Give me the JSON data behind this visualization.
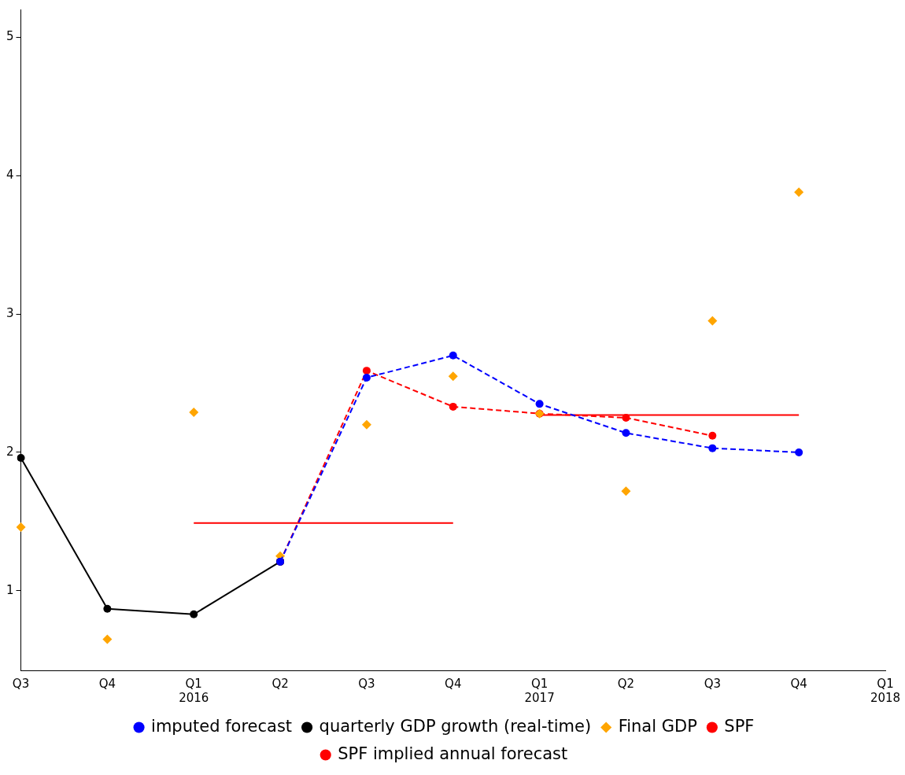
{
  "chart_data": {
    "type": "line",
    "categories": [
      "Q3",
      "Q4",
      "Q1\n2016",
      "Q2",
      "Q3",
      "Q4",
      "Q1\n2017",
      "Q2",
      "Q3",
      "Q4",
      "Q1\n2018"
    ],
    "ylim": [
      0.425,
      5.2
    ],
    "yticks": [
      1,
      2,
      3,
      4,
      5
    ],
    "grid": false,
    "legend": "bottom",
    "series": [
      {
        "name": "imputed forecast",
        "color": "#0000ff",
        "marker": "circle",
        "line_style": "dashed",
        "values": [
          null,
          null,
          null,
          1.21,
          2.54,
          2.7,
          2.35,
          2.14,
          2.03,
          2.0,
          null
        ]
      },
      {
        "name": "quarterly GDP growth (real-time)",
        "color": "#000000",
        "marker": "circle",
        "line_style": "solid",
        "values": [
          1.96,
          0.87,
          0.83,
          1.21,
          null,
          null,
          null,
          null,
          null,
          null,
          null
        ]
      },
      {
        "name": "Final GDP",
        "type": "scatter",
        "color": "#ffa500",
        "marker": "diamond",
        "values": [
          1.46,
          0.65,
          2.29,
          1.25,
          2.2,
          2.55,
          2.28,
          1.72,
          2.95,
          3.88,
          null
        ]
      },
      {
        "name": "SPF",
        "color": "#ff0000",
        "marker": "circle",
        "line_style": "dashed",
        "values": [
          null,
          null,
          null,
          1.21,
          2.59,
          2.33,
          2.28,
          2.25,
          2.12,
          null,
          null
        ]
      },
      {
        "name": "SPF implied annual forecast",
        "color": "#ff0000",
        "marker": "none",
        "line_style": "solid",
        "values": [
          null,
          null,
          1.49,
          1.49,
          1.49,
          1.49,
          null,
          null,
          null,
          null,
          null
        ]
      },
      {
        "color": "#ff0000",
        "marker": "none",
        "line_style": "solid",
        "values": [
          null,
          null,
          null,
          null,
          null,
          null,
          2.27,
          2.27,
          2.27,
          2.27,
          null
        ]
      }
    ]
  }
}
